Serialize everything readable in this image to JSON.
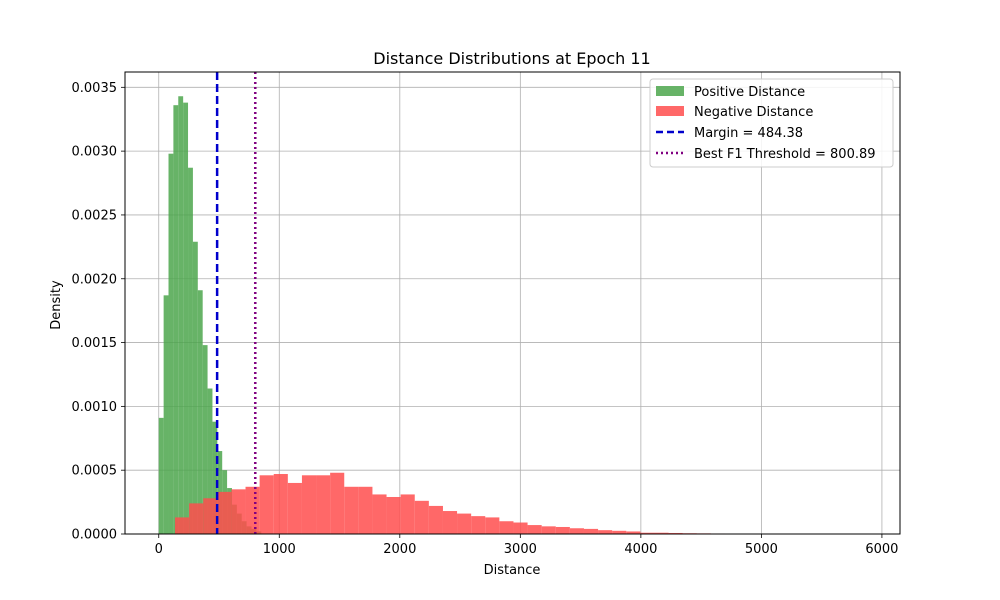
{
  "chart_data": {
    "type": "histogram",
    "title": "Distance Distributions at Epoch 11",
    "xlabel": "Distance",
    "ylabel": "Density",
    "xlim": [
      -280,
      6150
    ],
    "ylim": [
      0,
      0.00362
    ],
    "xticks": [
      0,
      1000,
      2000,
      3000,
      4000,
      5000,
      6000
    ],
    "yticks": [
      0.0,
      0.0005,
      0.001,
      0.0015,
      0.002,
      0.0025,
      0.003,
      0.0035
    ],
    "ytick_labels": [
      "0.0000",
      "0.0005",
      "0.0010",
      "0.0015",
      "0.0020",
      "0.0025",
      "0.0030",
      "0.0035"
    ],
    "grid": true,
    "legend_position": "top-right",
    "series": [
      {
        "name": "Positive Distance",
        "color": "#4ca64c",
        "bin_start": 0,
        "bin_width": 40.5,
        "values": [
          0.00091,
          0.00187,
          0.00298,
          0.00336,
          0.00343,
          0.00338,
          0.00287,
          0.00229,
          0.00191,
          0.00148,
          0.00114,
          0.00088,
          0.00065,
          0.0005,
          0.00036,
          0.00023,
          0.00016,
          0.0001,
          6e-05,
          4e-05,
          2e-05
        ]
      },
      {
        "name": "Negative Distance",
        "color": "#ff4d4d",
        "bin_start": 135,
        "bin_width": 117,
        "values": [
          0.00013,
          0.00024,
          0.00028,
          0.00033,
          0.00035,
          0.00037,
          0.00046,
          0.00047,
          0.0004,
          0.00046,
          0.00046,
          0.00048,
          0.00037,
          0.00037,
          0.00031,
          0.00029,
          0.00031,
          0.00026,
          0.00022,
          0.00018,
          0.00016,
          0.00014,
          0.00013,
          0.0001,
          9e-05,
          7e-05,
          6e-05,
          5.5e-05,
          4.5e-05,
          4e-05,
          3e-05,
          2.5e-05,
          2e-05,
          1e-05,
          1e-05,
          8e-06,
          6e-06,
          5e-06,
          4e-06,
          3e-06,
          3e-06,
          2e-06,
          2e-06,
          2e-06,
          1e-06,
          1e-06,
          1e-06
        ]
      }
    ],
    "vlines": [
      {
        "name": "Margin = 484.38",
        "x": 484.38,
        "color": "#0000cc",
        "style": "dashed"
      },
      {
        "name": "Best F1 Threshold = 800.89",
        "x": 800.89,
        "color": "#800080",
        "style": "dotted"
      }
    ]
  }
}
